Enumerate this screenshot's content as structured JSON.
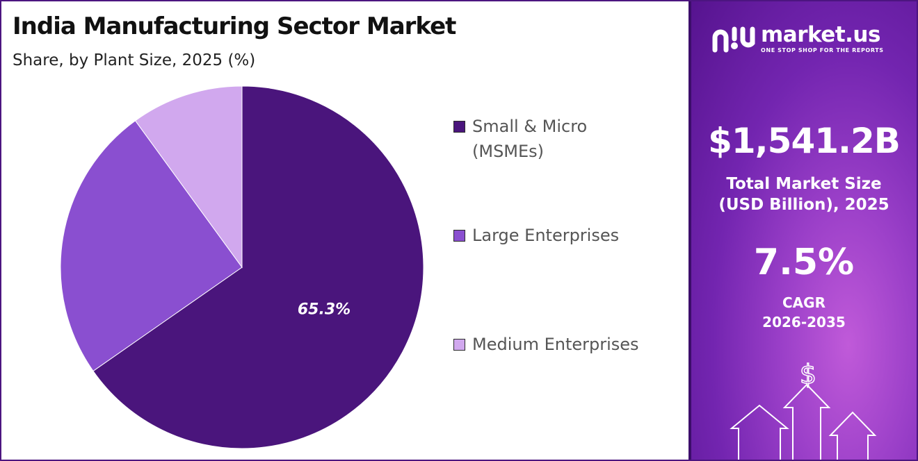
{
  "header": {
    "title": "India Manufacturing Sector Market",
    "subtitle": "Share, by Plant Size, 2025 (%)"
  },
  "chart_data": {
    "type": "pie",
    "title": "India Manufacturing Sector Market",
    "subtitle": "Share, by Plant Size, 2025 (%)",
    "categories": [
      "Small & Micro (MSMEs)",
      "Large Enterprises",
      "Medium Enterprises"
    ],
    "values": [
      65.3,
      24.7,
      10.0
    ],
    "labels_shown": [
      "65.3%",
      "",
      ""
    ],
    "colors": [
      "#4a157c",
      "#8a4fd0",
      "#d1a8ee"
    ],
    "legend_position": "right"
  },
  "legend": [
    {
      "label": "Small & Micro (MSMEs)",
      "color": "#4a157c"
    },
    {
      "label": "Large Enterprises",
      "color": "#8a4fd0"
    },
    {
      "label": "Medium Enterprises",
      "color": "#d1a8ee"
    }
  ],
  "sidebar": {
    "brand_name": "market.us",
    "brand_tagline": "ONE STOP SHOP FOR THE REPORTS",
    "market_size_value": "$1,541.2B",
    "market_size_label_line1": "Total Market Size",
    "market_size_label_line2": "(USD Billion), 2025",
    "cagr_value": "7.5%",
    "cagr_label_line1": "CAGR",
    "cagr_label_line2": "2026-2035",
    "deco_symbol": "$"
  },
  "colors": {
    "accent_dark": "#4a157c",
    "panel_bg": "#7325b0",
    "border": "#4c1580"
  }
}
